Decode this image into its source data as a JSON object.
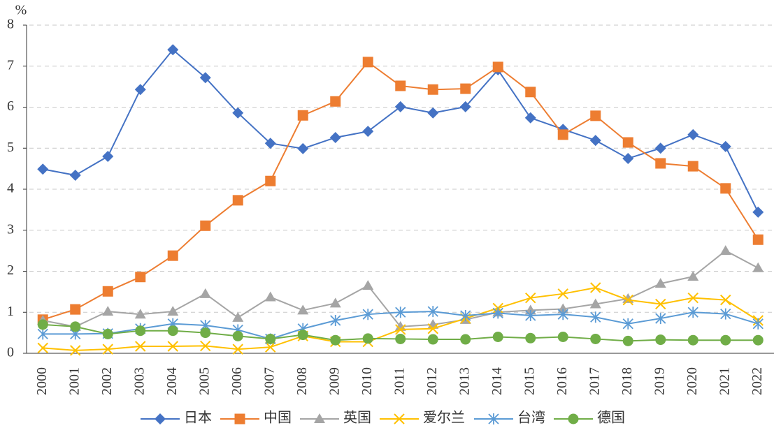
{
  "chart_data": {
    "type": "line",
    "y_unit": "%",
    "categories": [
      "2000",
      "2001",
      "2002",
      "2003",
      "2004",
      "2005",
      "2006",
      "2007",
      "2008",
      "2009",
      "2010",
      "2011",
      "2012",
      "2013",
      "2014",
      "2015",
      "2016",
      "2017",
      "2018",
      "2019",
      "2020",
      "2021",
      "2022"
    ],
    "ylim": [
      0,
      8
    ],
    "yticks": [
      0,
      1,
      2,
      3,
      4,
      5,
      6,
      7,
      8
    ],
    "grid": true,
    "legend": "bottom",
    "series": [
      {
        "name": "日本",
        "color": "#4472c4",
        "marker": "diamond",
        "values": [
          4.49,
          4.34,
          4.8,
          6.43,
          7.4,
          6.72,
          5.86,
          5.12,
          4.99,
          5.26,
          5.41,
          6.01,
          5.86,
          6.01,
          6.91,
          5.74,
          5.46,
          5.19,
          4.75,
          5.0,
          5.33,
          5.04,
          3.44
        ]
      },
      {
        "name": "中国",
        "color": "#ed7d31",
        "marker": "square",
        "values": [
          0.82,
          1.07,
          1.51,
          1.86,
          2.38,
          3.11,
          3.73,
          4.2,
          5.8,
          6.14,
          7.1,
          6.52,
          6.43,
          6.45,
          6.98,
          6.37,
          5.33,
          5.79,
          5.14,
          4.63,
          4.56,
          4.02,
          2.77
        ]
      },
      {
        "name": "英国",
        "color": "#a5a5a5",
        "marker": "triangle",
        "values": [
          0.8,
          0.65,
          1.02,
          0.95,
          1.02,
          1.45,
          0.87,
          1.37,
          1.05,
          1.22,
          1.65,
          0.65,
          0.7,
          0.82,
          1.0,
          1.05,
          1.08,
          1.2,
          1.33,
          1.7,
          1.87,
          2.5,
          2.08
        ]
      },
      {
        "name": "爱尔兰",
        "color": "#ffc000",
        "marker": "x",
        "values": [
          0.13,
          0.07,
          0.1,
          0.17,
          0.17,
          0.18,
          0.1,
          0.15,
          0.42,
          0.28,
          0.28,
          0.58,
          0.6,
          0.85,
          1.1,
          1.35,
          1.45,
          1.6,
          1.3,
          1.2,
          1.35,
          1.3,
          0.8
        ]
      },
      {
        "name": "台湾",
        "color": "#5b9bd5",
        "marker": "asterisk",
        "values": [
          0.47,
          0.47,
          0.48,
          0.6,
          0.72,
          0.68,
          0.57,
          0.35,
          0.6,
          0.8,
          0.95,
          1.0,
          1.02,
          0.92,
          0.98,
          0.92,
          0.95,
          0.88,
          0.72,
          0.85,
          1.0,
          0.96,
          0.72
        ]
      },
      {
        "name": "德国",
        "color": "#70ad47",
        "marker": "circle",
        "values": [
          0.7,
          0.65,
          0.47,
          0.55,
          0.55,
          0.5,
          0.42,
          0.35,
          0.45,
          0.32,
          0.36,
          0.35,
          0.34,
          0.34,
          0.4,
          0.37,
          0.4,
          0.35,
          0.3,
          0.33,
          0.32,
          0.32,
          0.32
        ]
      }
    ]
  }
}
